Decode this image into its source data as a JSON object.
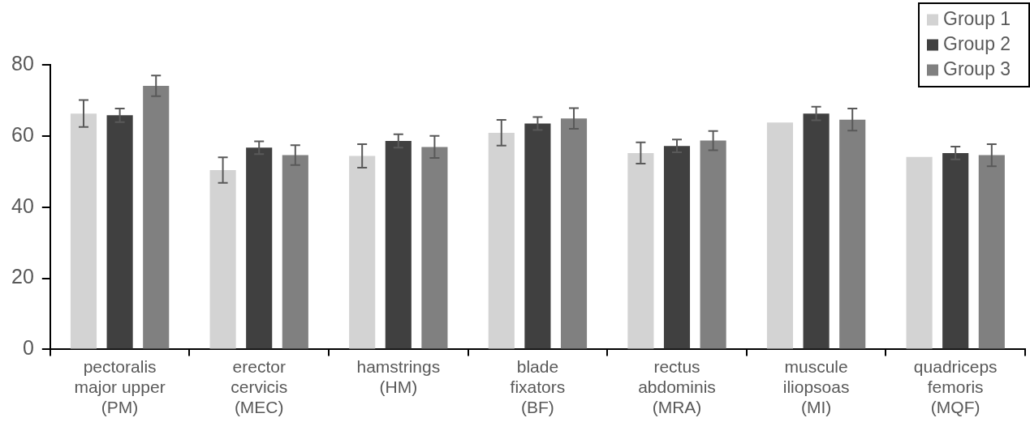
{
  "chart_data": {
    "type": "bar",
    "categories": [
      "pectoralis major upper (PM)",
      "erector cervicis (MEC)",
      "hamstrings (HM)",
      "blade fixators (BF)",
      "rectus abdominis (MRA)",
      "muscule iliopsoas (MI)",
      "quadriceps femoris (MQF)"
    ],
    "series": [
      {
        "name": "Group 1",
        "color": "#d3d3d3",
        "values": [
          66.3,
          50.4,
          54.4,
          60.9,
          55.2,
          63.8,
          54.1
        ],
        "errors": [
          3.8,
          3.6,
          3.3,
          3.6,
          3.0,
          null,
          null
        ]
      },
      {
        "name": "Group 2",
        "color": "#404040",
        "values": [
          65.8,
          56.7,
          58.6,
          63.5,
          57.2,
          66.3,
          55.2
        ],
        "errors": [
          1.9,
          1.8,
          1.9,
          1.8,
          1.8,
          1.9,
          1.8
        ]
      },
      {
        "name": "Group 3",
        "color": "#808080",
        "values": [
          74.1,
          54.6,
          56.9,
          64.9,
          58.7,
          64.6,
          54.6
        ],
        "errors": [
          2.9,
          2.8,
          3.1,
          2.9,
          2.7,
          3.1,
          3.1
        ]
      }
    ],
    "ylim": [
      0,
      80
    ],
    "yticks": [
      0,
      20,
      40,
      60,
      80
    ],
    "grid": false,
    "legend": "top right"
  }
}
